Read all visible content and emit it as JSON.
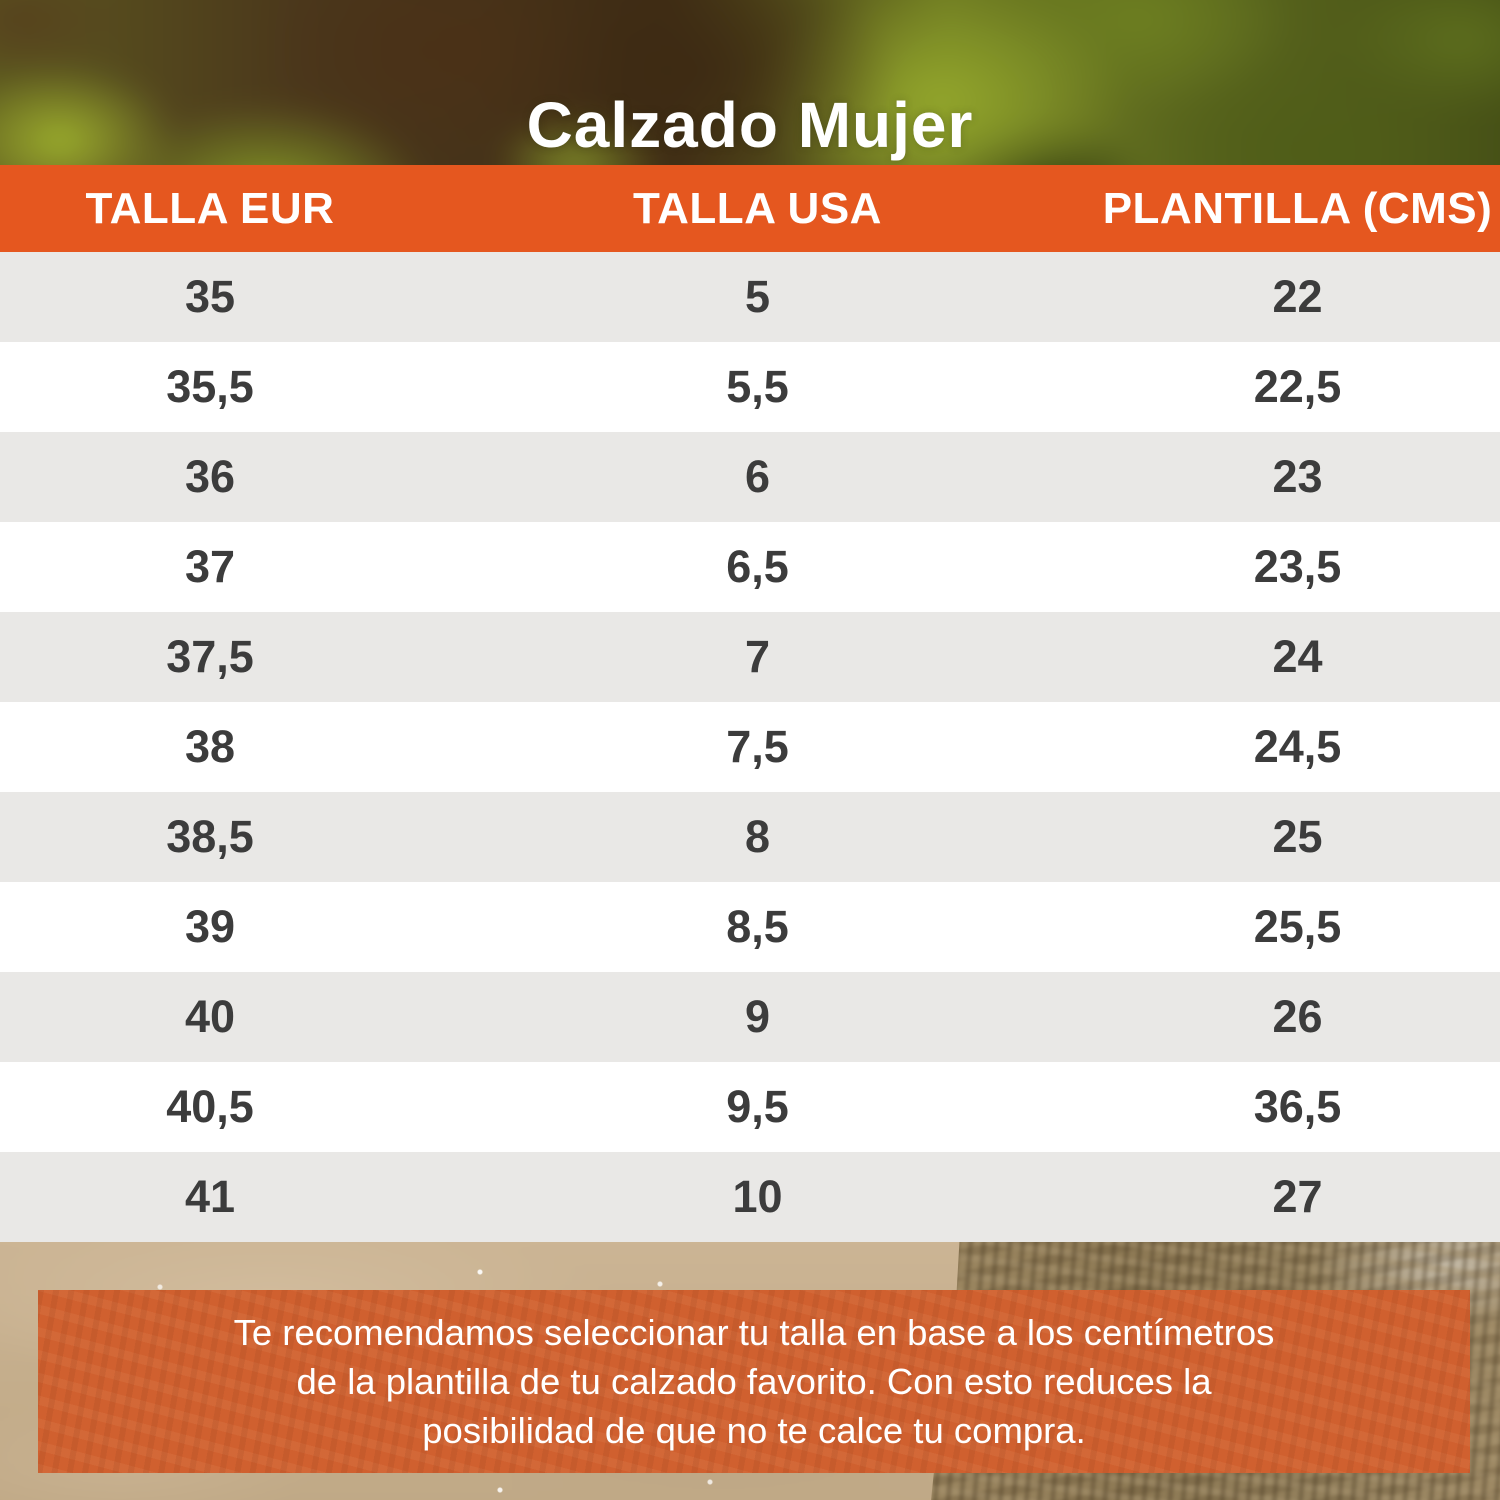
{
  "title": "Calzado Mujer",
  "table": {
    "headers": [
      "TALLA EUR",
      "TALLA USA",
      "PLANTILLA (CMS)"
    ],
    "rows": [
      [
        "35",
        "5",
        "22"
      ],
      [
        "35,5",
        "5,5",
        "22,5"
      ],
      [
        "36",
        "6",
        "23"
      ],
      [
        "37",
        "6,5",
        "23,5"
      ],
      [
        "37,5",
        "7",
        "24"
      ],
      [
        "38",
        "7,5",
        "24,5"
      ],
      [
        "38,5",
        "8",
        "25"
      ],
      [
        "39",
        "8,5",
        "25,5"
      ],
      [
        "40",
        "9",
        "26"
      ],
      [
        "40,5",
        "9,5",
        "36,5"
      ],
      [
        "41",
        "10",
        "27"
      ]
    ]
  },
  "note": {
    "lines": [
      "Te recomendamos seleccionar tu talla en base a los centímetros",
      "de la plantilla de tu calzado favorito. Con esto reduces la",
      "posibilidad de que no te calce tu compra."
    ]
  },
  "colors": {
    "header_orange": "#E5571F",
    "note_box_orange": "#D0602F",
    "row_gray": "#E9E8E6",
    "row_white": "#FFFFFF",
    "cell_text": "#3C3C3C",
    "header_text": "#FFFFFF",
    "title_text": "#FFFFFF"
  },
  "chart_data": {
    "type": "table",
    "title": "Calzado Mujer",
    "columns": [
      "TALLA EUR",
      "TALLA USA",
      "PLANTILLA (CMS)"
    ],
    "rows": [
      [
        "35",
        "5",
        "22"
      ],
      [
        "35,5",
        "5,5",
        "22,5"
      ],
      [
        "36",
        "6",
        "23"
      ],
      [
        "37",
        "6,5",
        "23,5"
      ],
      [
        "37,5",
        "7",
        "24"
      ],
      [
        "38",
        "7,5",
        "24,5"
      ],
      [
        "38,5",
        "8",
        "25"
      ],
      [
        "39",
        "8,5",
        "25,5"
      ],
      [
        "40",
        "9",
        "26"
      ],
      [
        "40,5",
        "9,5",
        "36,5"
      ],
      [
        "41",
        "10",
        "27"
      ]
    ],
    "legend_position": "none",
    "grid": false
  }
}
